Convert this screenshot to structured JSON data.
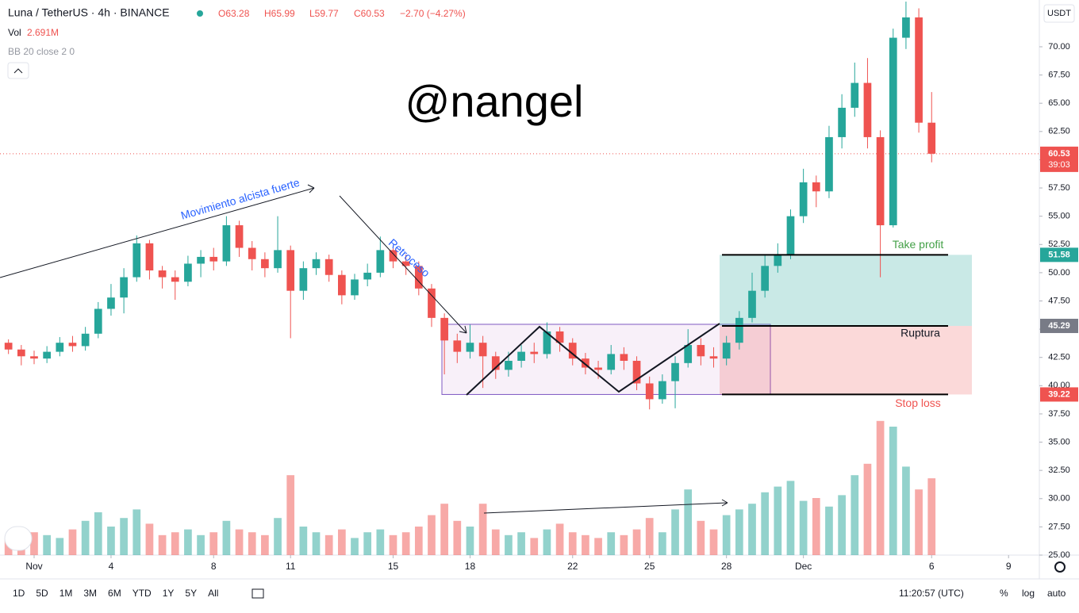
{
  "header": {
    "symbol": "Luna / TetherUS · 4h · BINANCE",
    "open": "O63.28",
    "high": "H65.99",
    "low": "L59.77",
    "close": "C60.53",
    "change": "−2.70 (−4.27%)",
    "vol_name": "Vol",
    "vol_value": "2.691M",
    "indicator": "BB 20 close 2 0",
    "watermark": "@nangel",
    "currency": "USDT",
    "countdown": "39:03"
  },
  "toolbar": {
    "ranges": [
      "1D",
      "5D",
      "1M",
      "3M",
      "6M",
      "YTD",
      "1Y",
      "5Y",
      "All"
    ],
    "clock": "11:20:57 (UTC)",
    "percent": "%",
    "log": "log",
    "auto": "auto"
  },
  "chart_data": {
    "type": "candlestick",
    "up_color": "#26a69a",
    "down_color": "#ef5350",
    "xlim": [
      -0.33,
      40.2
    ],
    "ylim": [
      25,
      74.14
    ],
    "xticks": [
      {
        "value": 1,
        "label": "Nov"
      },
      4,
      8,
      11,
      15,
      18,
      22,
      25,
      28,
      {
        "value": 31,
        "label": "Dec"
      },
      {
        "value": 36,
        "label": "6"
      },
      {
        "value": 39,
        "label": "9"
      }
    ],
    "yticks": [
      {
        "value": 25,
        "label": "25.00"
      },
      {
        "value": 27.5,
        "label": "27.50"
      },
      {
        "value": 30,
        "label": "30.00"
      },
      {
        "value": 32.5,
        "label": "32.50"
      },
      {
        "value": 35,
        "label": "35.00"
      },
      {
        "value": 37.5,
        "label": "37.50"
      },
      {
        "value": 40,
        "label": "40.00"
      },
      {
        "value": 42.5,
        "label": "42.50"
      },
      {
        "value": 45,
        "label": "45.00"
      },
      {
        "value": 47.5,
        "label": "47.50"
      },
      {
        "value": 50,
        "label": "50.00"
      },
      {
        "value": 52.5,
        "label": "52.50"
      },
      {
        "value": 55,
        "label": "55.00"
      },
      {
        "value": 57.5,
        "label": "57.50"
      },
      {
        "value": 60,
        "label": "60.00"
      },
      {
        "value": 62.5,
        "label": "62.50"
      },
      {
        "value": 65,
        "label": "65.00"
      },
      {
        "value": 67.5,
        "label": "67.50"
      },
      {
        "value": 70,
        "label": "70.00"
      }
    ],
    "grid": false,
    "x": [
      0,
      0.5,
      1,
      1.5,
      2,
      2.5,
      3,
      3.5,
      4,
      4.5,
      5,
      5.5,
      6,
      6.5,
      7,
      7.5,
      8,
      8.5,
      9,
      9.5,
      10,
      10.5,
      11,
      11.5,
      12,
      12.5,
      13,
      13.5,
      14,
      14.5,
      15,
      15.5,
      16,
      16.5,
      17,
      17.5,
      18,
      18.5,
      19,
      19.5,
      20,
      20.5,
      21,
      21.5,
      22,
      22.5,
      23,
      23.5,
      24,
      24.5,
      25,
      25.5,
      26,
      26.5,
      27,
      27.5,
      28,
      28.5,
      29,
      29.5,
      30,
      30.5,
      31,
      31.5,
      32,
      32.5,
      33,
      33.5,
      34,
      34.5,
      35,
      35.5,
      36
    ],
    "open": [
      43.8,
      43.2,
      42.6,
      42.4,
      43.0,
      43.8,
      43.5,
      44.6,
      46.8,
      47.8,
      49.6,
      52.6,
      50.2,
      49.6,
      49.2,
      50.8,
      51.4,
      51.0,
      54.2,
      52.2,
      51.2,
      50.4,
      52.0,
      48.4,
      50.4,
      51.2,
      49.8,
      48.0,
      49.4,
      50.0,
      52.0,
      51.0,
      50.6,
      48.6,
      46.0,
      44.0,
      43.0,
      43.8,
      42.6,
      41.4,
      42.2,
      43.0,
      42.8,
      44.8,
      43.8,
      42.4,
      41.6,
      41.4,
      42.8,
      42.2,
      40.2,
      38.8,
      40.4,
      42.0,
      43.6,
      42.6,
      42.4,
      43.8,
      46.0,
      48.4,
      50.6,
      51.6,
      55.0,
      58.0,
      57.2,
      62.0,
      64.6,
      66.8,
      62.0,
      54.2,
      70.8,
      72.6,
      63.28
    ],
    "high": [
      44.1,
      43.6,
      43.1,
      43.5,
      44.3,
      44.4,
      45.2,
      47.4,
      49.0,
      50.4,
      53.3,
      52.9,
      50.6,
      50.2,
      51.5,
      52.0,
      52.2,
      55.0,
      54.6,
      52.8,
      51.8,
      55.0,
      52.4,
      51.0,
      51.8,
      51.6,
      50.2,
      49.9,
      50.8,
      53.2,
      52.4,
      51.6,
      51.0,
      49.0,
      46.4,
      44.6,
      45.4,
      44.4,
      43.0,
      43.0,
      43.6,
      43.8,
      45.6,
      45.2,
      44.2,
      42.9,
      42.2,
      43.6,
      43.4,
      42.6,
      40.8,
      41.0,
      42.6,
      45.0,
      44.2,
      43.4,
      44.4,
      46.6,
      50.0,
      51.6,
      52.6,
      55.6,
      59.2,
      58.6,
      63.0,
      65.8,
      68.6,
      69.0,
      62.6,
      71.6,
      74.0,
      73.4,
      65.99
    ],
    "low": [
      42.8,
      41.8,
      41.9,
      42.0,
      42.6,
      43.0,
      43.1,
      44.2,
      46.2,
      46.4,
      49.2,
      49.4,
      48.6,
      47.6,
      48.8,
      49.6,
      50.2,
      50.6,
      51.4,
      50.2,
      49.6,
      50.0,
      44.2,
      47.6,
      49.8,
      49.2,
      47.2,
      47.6,
      48.8,
      49.6,
      50.4,
      49.8,
      48.0,
      45.2,
      41.0,
      42.0,
      42.4,
      39.8,
      40.6,
      40.8,
      41.6,
      42.0,
      42.4,
      43.0,
      41.8,
      41.0,
      40.6,
      41.0,
      41.4,
      39.6,
      37.9,
      38.4,
      38.0,
      41.6,
      41.8,
      41.6,
      41.8,
      43.2,
      45.6,
      47.8,
      50.0,
      51.2,
      54.4,
      55.8,
      56.6,
      61.0,
      63.8,
      61.0,
      49.6,
      54.0,
      69.8,
      62.4,
      59.77
    ],
    "close": [
      43.2,
      42.6,
      42.4,
      43.0,
      43.8,
      43.5,
      44.6,
      46.8,
      47.8,
      49.6,
      52.6,
      50.2,
      49.6,
      49.2,
      50.8,
      51.4,
      51.0,
      54.2,
      52.2,
      51.2,
      50.4,
      52.0,
      48.4,
      50.4,
      51.2,
      49.8,
      48.0,
      49.4,
      50.0,
      52.0,
      51.0,
      50.6,
      48.6,
      46.0,
      44.0,
      43.0,
      43.8,
      42.6,
      41.4,
      42.2,
      43.0,
      42.8,
      44.8,
      43.8,
      42.4,
      41.6,
      41.4,
      42.8,
      42.2,
      40.2,
      38.8,
      40.4,
      42.0,
      43.6,
      42.6,
      42.4,
      43.8,
      46.0,
      48.4,
      50.6,
      51.6,
      55.0,
      58.0,
      57.2,
      62.0,
      64.6,
      66.8,
      62.0,
      54.2,
      70.8,
      72.6,
      63.28,
      60.53
    ],
    "volume": [
      0.6,
      0.7,
      0.8,
      0.7,
      0.6,
      0.9,
      1.2,
      1.5,
      1.0,
      1.3,
      1.6,
      1.1,
      0.7,
      0.8,
      0.9,
      0.7,
      0.8,
      1.2,
      0.9,
      0.8,
      0.7,
      1.3,
      2.8,
      1.0,
      0.8,
      0.7,
      0.9,
      0.6,
      0.8,
      0.9,
      0.7,
      0.8,
      1.0,
      1.4,
      1.8,
      1.2,
      1.0,
      1.8,
      0.9,
      0.7,
      0.8,
      0.6,
      0.9,
      1.1,
      0.8,
      0.7,
      0.6,
      0.8,
      0.7,
      0.9,
      1.3,
      0.8,
      1.6,
      2.3,
      1.2,
      0.9,
      1.4,
      1.6,
      1.8,
      2.2,
      2.4,
      2.6,
      1.9,
      2.0,
      1.7,
      2.1,
      2.8,
      3.2,
      4.7,
      4.5,
      3.1,
      2.3,
      2.691
    ],
    "position": {
      "take_profit": 51.58,
      "entry": 45.29,
      "stop_loss": 39.22
    },
    "annotations": {
      "trend": "Movimiento alcista fuerte",
      "pullback": "Retroceso",
      "breakout": "Ruptura",
      "take_profit": "Take profit",
      "stop_loss": "Stop loss"
    }
  }
}
